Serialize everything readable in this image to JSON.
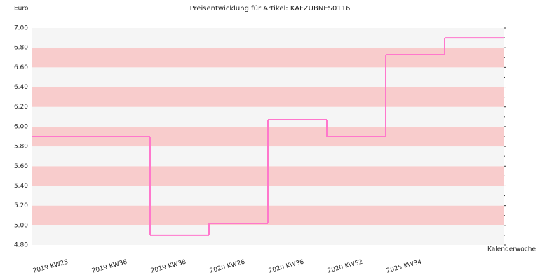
{
  "chart_data": {
    "type": "step",
    "title": "Preisentwicklung für Artikel: KAFZUBNES0116",
    "y_label": "Euro",
    "x_label": "Kalenderwoche",
    "categories": [
      "2019 KW25",
      "2019 KW36",
      "2019 KW38",
      "2020 KW26",
      "2020 KW36",
      "2020 KW52",
      "2025 KW34"
    ],
    "values": [
      5.9,
      4.9,
      5.02,
      6.07,
      5.9,
      6.73,
      6.9
    ],
    "color": "#ff77cc",
    "band_colors": [
      "#f5f5f5",
      "#f8cccc"
    ],
    "ylim": [
      4.8,
      7.0
    ],
    "yticks": [
      {
        "value": 4.8,
        "label": "4.80"
      },
      {
        "value": 5.0,
        "label": "5.00"
      },
      {
        "value": 5.2,
        "label": "5.20"
      },
      {
        "value": 5.4,
        "label": "5.40"
      },
      {
        "value": 5.6,
        "label": "5.60"
      },
      {
        "value": 5.8,
        "label": "5.80"
      },
      {
        "value": 6.0,
        "label": "6.00"
      },
      {
        "value": 6.2,
        "label": "6.20"
      },
      {
        "value": 6.4,
        "label": "6.40"
      },
      {
        "value": 6.6,
        "label": "6.60"
      },
      {
        "value": 6.8,
        "label": "6.80"
      },
      {
        "value": 7.0,
        "label": "7.00"
      }
    ]
  }
}
